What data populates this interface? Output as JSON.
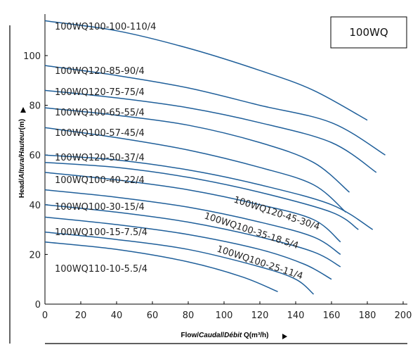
{
  "chart_data": {
    "type": "line",
    "model_box": "100WQ",
    "xlabel": {
      "prefix": "Flow/",
      "italic": "Caudal",
      "sep": "/",
      "italic2": "Débit",
      "suffix": " Q(m³/h)"
    },
    "ylabel": {
      "prefix": "Head/",
      "italic": "Altura/Hauteur",
      "suffix": "(m)"
    },
    "xlim": [
      0,
      200
    ],
    "ylim": [
      0,
      115
    ],
    "x_ticks": [
      "0",
      "20",
      "40",
      "60",
      "80",
      "100",
      "120",
      "140",
      "160",
      "180",
      "200"
    ],
    "y_ticks": [
      "0",
      "20",
      "40",
      "60",
      "80",
      "100"
    ],
    "grid": false,
    "series": [
      {
        "name": "100WQ100-100-110/4",
        "x": [
          0,
          40,
          80,
          120,
          150,
          180
        ],
        "y": [
          114,
          110,
          103,
          94,
          86,
          74
        ]
      },
      {
        "name": "100WQ120-85-90/4",
        "x": [
          0,
          40,
          80,
          120,
          160,
          190
        ],
        "y": [
          96,
          92,
          87,
          80,
          73,
          60
        ]
      },
      {
        "name": "100WQ120-75-75/4",
        "x": [
          0,
          40,
          80,
          120,
          160,
          185
        ],
        "y": [
          86,
          83,
          79,
          73,
          65,
          53
        ]
      },
      {
        "name": "100WQ100-65-55/4",
        "x": [
          0,
          40,
          80,
          120,
          150,
          170
        ],
        "y": [
          79,
          76,
          72,
          65,
          57,
          45
        ]
      },
      {
        "name": "100WQ100-57-45/4",
        "x": [
          0,
          40,
          80,
          120,
          150,
          168
        ],
        "y": [
          71,
          67,
          62,
          55,
          48,
          37
        ]
      },
      {
        "name": "100WQ120-50-37/4",
        "x": [
          0,
          40,
          80,
          120,
          160,
          183
        ],
        "y": [
          60,
          58,
          54,
          48,
          40,
          30
        ]
      },
      {
        "name": "100WQ100-40-22/4",
        "x": [
          0,
          40,
          80,
          120,
          150,
          165
        ],
        "y": [
          53,
          50,
          46,
          40,
          34,
          25
        ]
      },
      {
        "name": "100WQ120-45-30/4",
        "x": [
          0,
          40,
          80,
          120,
          160,
          175
        ],
        "y": [
          57,
          55,
          51,
          45,
          37,
          30
        ]
      },
      {
        "name": "100WQ100-35-18.5/4",
        "x": [
          0,
          40,
          80,
          120,
          150,
          165
        ],
        "y": [
          46,
          43,
          39,
          33,
          27,
          20
        ]
      },
      {
        "name": "100WQ100-30-15/4",
        "x": [
          0,
          40,
          80,
          120,
          150,
          165
        ],
        "y": [
          40,
          37,
          33,
          27,
          21,
          15
        ]
      },
      {
        "name": "100WQ100-25-11/4",
        "x": [
          0,
          40,
          80,
          120,
          145,
          160
        ],
        "y": [
          35,
          32,
          28,
          22,
          16,
          10
        ]
      },
      {
        "name": "100WQ100-15-7.5/4",
        "x": [
          0,
          40,
          80,
          120,
          140,
          150
        ],
        "y": [
          29,
          26,
          22,
          15,
          10,
          4
        ]
      },
      {
        "name": "100WQ110-10-5.5/4",
        "x": [
          0,
          40,
          80,
          110,
          130
        ],
        "y": [
          25,
          22,
          17,
          11,
          5
        ]
      }
    ]
  }
}
